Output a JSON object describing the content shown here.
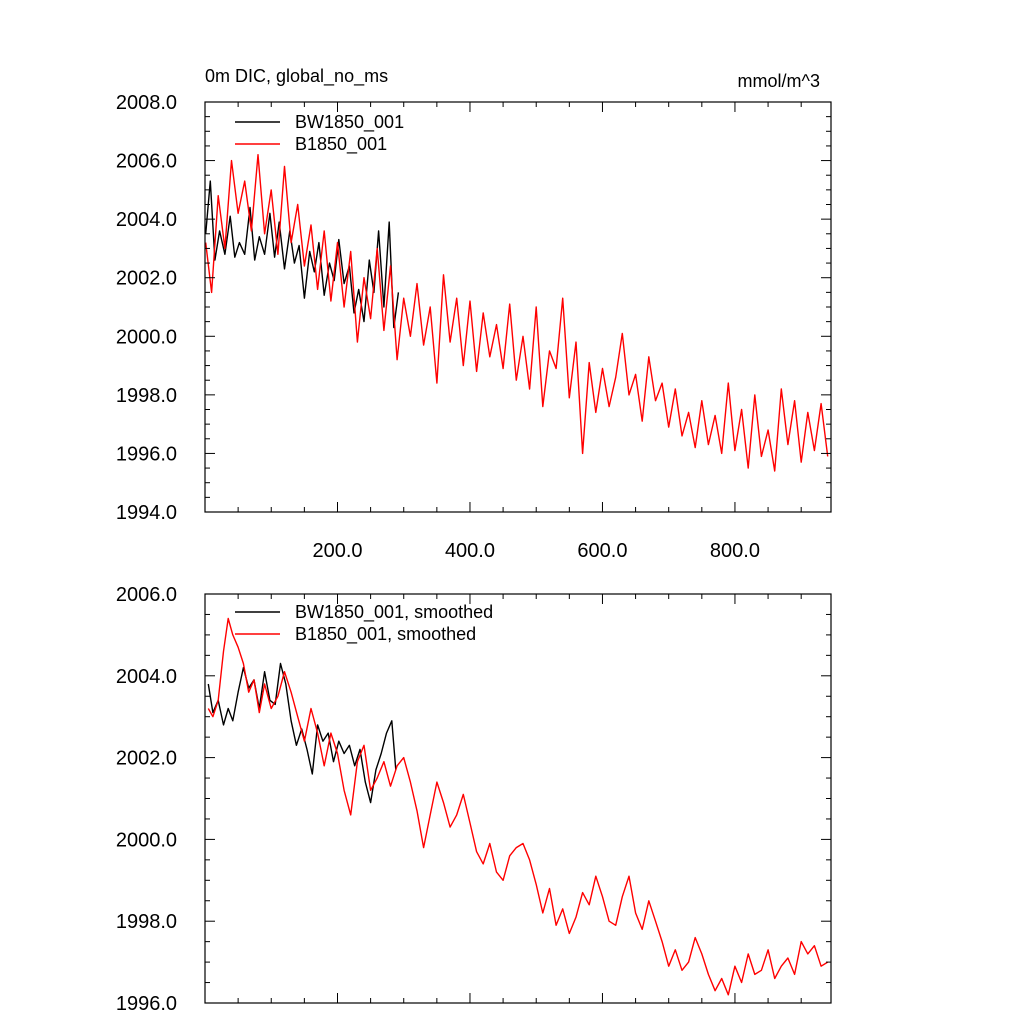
{
  "chart_data": [
    {
      "type": "line",
      "title": "0m DIC, global_no_ms",
      "units_label": "mmol/m^3",
      "xlim": [
        0,
        945
      ],
      "ylim": [
        1994,
        2008
      ],
      "xticks": [
        200,
        400,
        600,
        800
      ],
      "xtick_labels": [
        "200.0",
        "400.0",
        "600.0",
        "800.0"
      ],
      "yticks": [
        1994,
        1996,
        1998,
        2000,
        2002,
        2004,
        2006,
        2008
      ],
      "ytick_labels": [
        "1994.0",
        "1996.0",
        "1998.0",
        "2000.0",
        "2002.0",
        "2004.0",
        "2006.0",
        "2008.0"
      ],
      "series": [
        {
          "name": "BW1850_001",
          "color": "#000000",
          "x": [
            1,
            8,
            15,
            22,
            30,
            38,
            45,
            52,
            60,
            68,
            75,
            82,
            90,
            98,
            105,
            112,
            120,
            128,
            135,
            142,
            150,
            158,
            165,
            172,
            180,
            188,
            195,
            202,
            210,
            218,
            225,
            232,
            240,
            248,
            255,
            262,
            270,
            278,
            285,
            292
          ],
          "values": [
            2003.5,
            2005.3,
            2002.6,
            2003.6,
            2002.8,
            2004.1,
            2002.7,
            2003.2,
            2002.8,
            2004.4,
            2002.6,
            2003.4,
            2002.8,
            2004.2,
            2002.7,
            2003.9,
            2002.3,
            2003.6,
            2002.5,
            2003.1,
            2001.3,
            2002.9,
            2002.2,
            2003.2,
            2001.4,
            2002.5,
            2001.9,
            2003.3,
            2001.8,
            2002.4,
            2000.8,
            2001.6,
            2000.5,
            2002.6,
            2001.5,
            2003.6,
            2001.0,
            2003.9,
            2000.3,
            2001.5
          ]
        },
        {
          "name": "B1850_001",
          "color": "#ff0000",
          "x": [
            1,
            10,
            20,
            30,
            40,
            50,
            60,
            70,
            80,
            90,
            100,
            110,
            120,
            130,
            140,
            150,
            160,
            170,
            180,
            190,
            200,
            210,
            220,
            230,
            240,
            250,
            260,
            270,
            280,
            290,
            300,
            310,
            320,
            330,
            340,
            350,
            360,
            370,
            380,
            390,
            400,
            410,
            420,
            430,
            440,
            450,
            460,
            470,
            480,
            490,
            500,
            510,
            520,
            530,
            540,
            550,
            560,
            570,
            580,
            590,
            600,
            610,
            620,
            630,
            640,
            650,
            660,
            670,
            680,
            690,
            700,
            710,
            720,
            730,
            740,
            750,
            760,
            770,
            780,
            790,
            800,
            810,
            820,
            830,
            840,
            850,
            860,
            870,
            880,
            890,
            900,
            910,
            920,
            930,
            940
          ],
          "values": [
            2003.2,
            2001.5,
            2004.8,
            2003.0,
            2006.0,
            2004.2,
            2005.3,
            2003.6,
            2006.2,
            2003.5,
            2005.0,
            2002.8,
            2005.8,
            2003.2,
            2004.5,
            2002.4,
            2003.8,
            2001.6,
            2003.6,
            2001.2,
            2003.2,
            2001.0,
            2002.9,
            1999.8,
            2002.0,
            2000.6,
            2003.0,
            2000.2,
            2002.4,
            1999.2,
            2001.3,
            2000.0,
            2001.8,
            1999.7,
            2001.0,
            1998.4,
            2002.1,
            1999.8,
            2001.3,
            1999.0,
            2001.2,
            1998.8,
            2000.8,
            1999.3,
            2000.4,
            1998.9,
            2001.1,
            1998.5,
            2000.0,
            1998.2,
            2001.0,
            1997.6,
            1999.5,
            1998.9,
            2001.3,
            1997.9,
            1999.8,
            1996.0,
            1999.1,
            1997.4,
            1998.9,
            1997.6,
            1998.6,
            2000.1,
            1998.0,
            1998.7,
            1997.1,
            1999.3,
            1997.8,
            1998.4,
            1996.9,
            1998.2,
            1996.6,
            1997.4,
            1996.2,
            1997.8,
            1996.3,
            1997.3,
            1996.0,
            1998.4,
            1996.1,
            1997.5,
            1995.5,
            1998.0,
            1995.9,
            1996.8,
            1995.4,
            1998.2,
            1996.3,
            1997.8,
            1995.7,
            1997.4,
            1996.1,
            1997.7,
            1995.9
          ]
        }
      ]
    },
    {
      "type": "line",
      "title": "",
      "xlim": [
        0,
        945
      ],
      "ylim": [
        1996,
        2006
      ],
      "xticks": [
        200,
        400,
        600,
        800
      ],
      "yticks": [
        1996,
        1998,
        2000,
        2002,
        2004,
        2006
      ],
      "ytick_labels": [
        "1996.0",
        "1998.0",
        "2000.0",
        "2002.0",
        "2004.0",
        "2006.0"
      ],
      "series": [
        {
          "name": "BW1850_001, smoothed",
          "color": "#000000",
          "x": [
            5,
            12,
            20,
            28,
            35,
            42,
            50,
            58,
            66,
            74,
            82,
            90,
            98,
            106,
            114,
            122,
            130,
            138,
            146,
            154,
            162,
            170,
            178,
            186,
            194,
            202,
            210,
            218,
            226,
            234,
            242,
            250,
            258,
            266,
            274,
            282,
            288
          ],
          "values": [
            2003.8,
            2003.1,
            2003.4,
            2002.8,
            2003.2,
            2002.9,
            2003.6,
            2004.2,
            2003.7,
            2003.9,
            2003.2,
            2004.1,
            2003.4,
            2003.3,
            2004.3,
            2003.8,
            2002.9,
            2002.3,
            2002.7,
            2002.2,
            2001.6,
            2002.8,
            2002.4,
            2002.6,
            2001.9,
            2002.4,
            2002.1,
            2002.3,
            2001.8,
            2002.2,
            2001.4,
            2000.9,
            2001.7,
            2002.1,
            2002.6,
            2002.9,
            2001.7
          ]
        },
        {
          "name": "B1850_001, smoothed",
          "color": "#ff0000",
          "x": [
            5,
            12,
            20,
            28,
            35,
            42,
            50,
            58,
            66,
            74,
            82,
            90,
            100,
            110,
            120,
            130,
            140,
            150,
            160,
            170,
            180,
            190,
            200,
            210,
            220,
            230,
            240,
            250,
            260,
            270,
            280,
            290,
            300,
            310,
            320,
            330,
            340,
            350,
            360,
            370,
            380,
            390,
            400,
            410,
            420,
            430,
            440,
            450,
            460,
            470,
            480,
            490,
            500,
            510,
            520,
            530,
            540,
            550,
            560,
            570,
            580,
            590,
            600,
            610,
            620,
            630,
            640,
            650,
            660,
            670,
            680,
            690,
            700,
            710,
            720,
            730,
            740,
            750,
            760,
            770,
            780,
            790,
            800,
            810,
            820,
            830,
            840,
            850,
            860,
            870,
            880,
            890,
            900,
            910,
            920,
            930,
            940
          ],
          "values": [
            2003.2,
            2003.0,
            2003.4,
            2004.6,
            2005.4,
            2005.0,
            2004.7,
            2004.3,
            2003.6,
            2003.9,
            2003.1,
            2003.8,
            2003.2,
            2003.5,
            2004.1,
            2003.6,
            2003.0,
            2002.4,
            2003.2,
            2002.6,
            2001.8,
            2002.6,
            2002.1,
            2001.2,
            2000.6,
            2001.9,
            2002.3,
            2001.2,
            2001.5,
            2001.9,
            2001.3,
            2001.8,
            2002.0,
            2001.4,
            2000.7,
            1999.8,
            2000.6,
            2001.4,
            2000.9,
            2000.3,
            2000.6,
            2001.1,
            2000.4,
            1999.7,
            1999.4,
            1999.9,
            1999.2,
            1999.0,
            1999.6,
            1999.8,
            1999.9,
            1999.5,
            1998.9,
            1998.2,
            1998.8,
            1997.9,
            1998.3,
            1997.7,
            1998.1,
            1998.7,
            1998.4,
            1999.1,
            1998.6,
            1998.0,
            1997.9,
            1998.6,
            1999.1,
            1998.2,
            1997.8,
            1998.5,
            1998.0,
            1997.5,
            1996.9,
            1997.3,
            1996.8,
            1997.0,
            1997.6,
            1997.2,
            1996.7,
            1996.3,
            1996.6,
            1996.2,
            1996.9,
            1996.5,
            1997.2,
            1996.7,
            1996.8,
            1997.3,
            1996.6,
            1996.9,
            1997.1,
            1996.7,
            1997.5,
            1997.2,
            1997.4,
            1996.9,
            1997.0
          ]
        }
      ]
    }
  ]
}
